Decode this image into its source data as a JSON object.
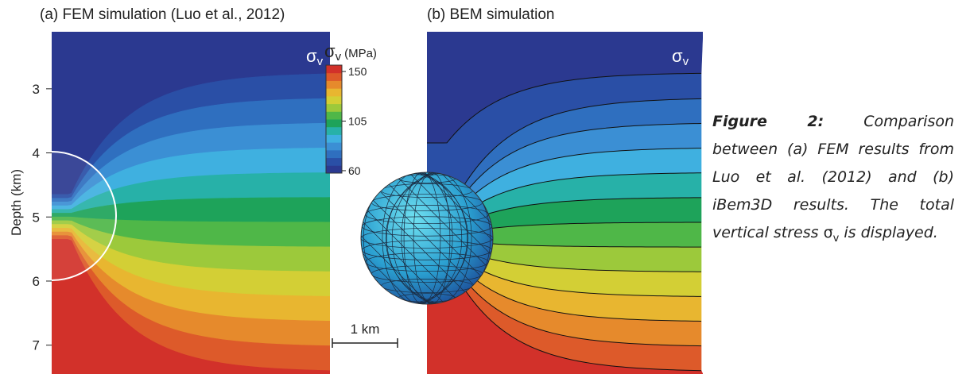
{
  "panel_a": {
    "title": "(a) FEM simulation (Luo et al., 2012)",
    "symbol": "σ",
    "symbol_sub": "v",
    "ylabel": "Depth (km)",
    "ylim": [
      2.11,
      7.45
    ],
    "yticks": [
      3,
      4,
      5,
      6,
      7
    ]
  },
  "panel_b": {
    "title": "(b) BEM simulation",
    "symbol": "σ",
    "symbol_sub": "v"
  },
  "colorbar": {
    "symbol": "σ",
    "symbol_sub": "v",
    "unit": "(MPa)",
    "lim": [
      57.8,
      155.8
    ],
    "ticks": [
      60,
      105,
      150
    ],
    "colors": [
      "#2b3990",
      "#2a4fa6",
      "#2f6fbf",
      "#3b8fd4",
      "#3fb0e0",
      "#27b1a8",
      "#1ea35a",
      "#4fb748",
      "#9cc93b",
      "#d3cf35",
      "#e8b630",
      "#e68a2c",
      "#dd5a2a",
      "#d2312a"
    ]
  },
  "scale_bar": "1 km",
  "caption": {
    "label": "Figure 2:",
    "text": "Comparison between (a) FEM results from Luo et al. (2012) and (b) iBem3D results. The total vertical stress",
    "symbol": "σ",
    "symbol_sub": "v",
    "text_end": "is displayed."
  }
}
